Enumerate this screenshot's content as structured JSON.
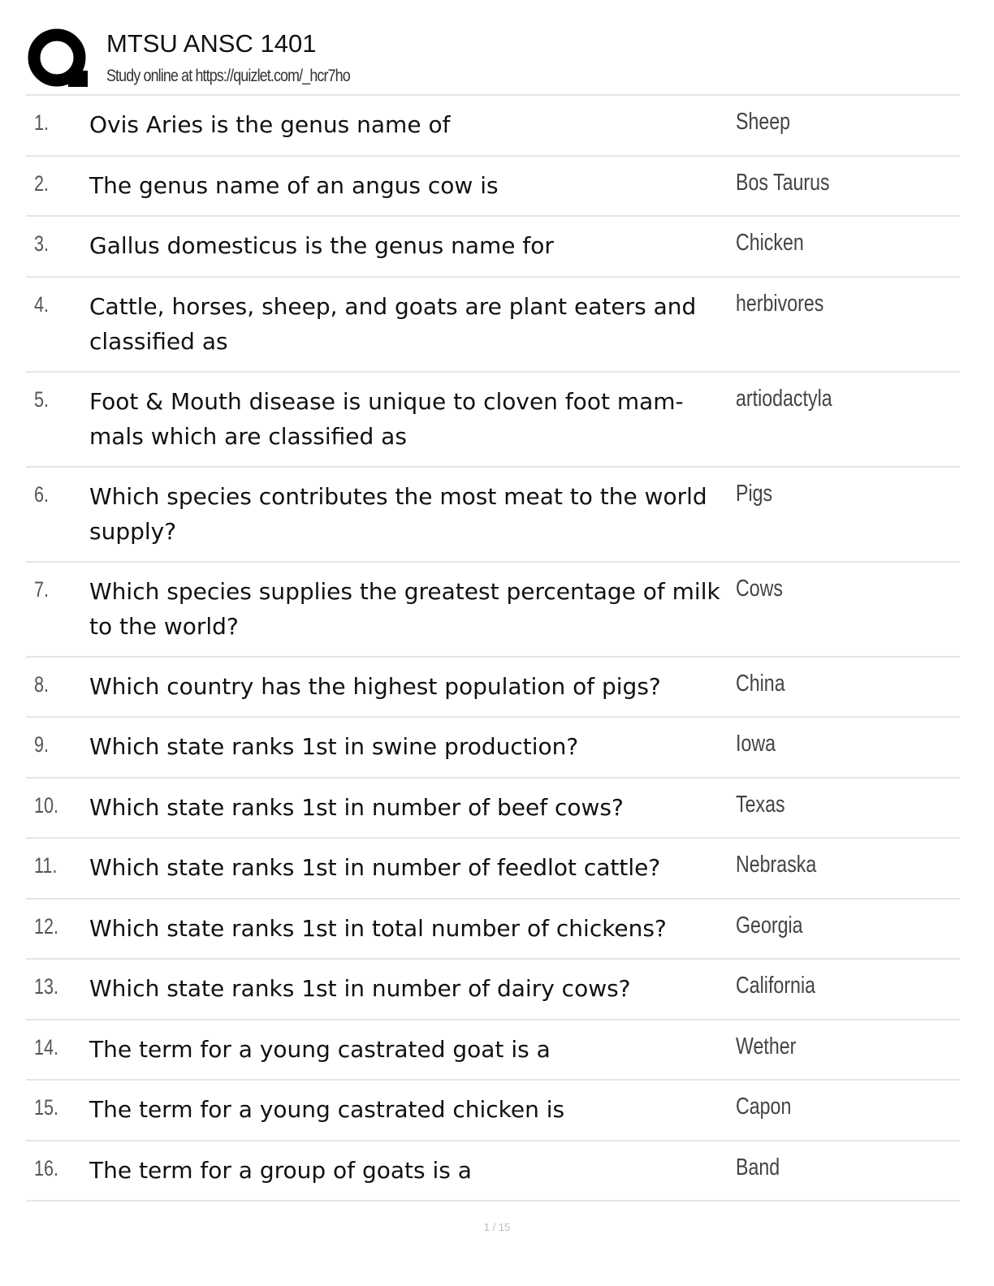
{
  "header": {
    "title": "MTSU ANSC 1401",
    "subtitle": "Study online at https://quizlet.com/_hcr7ho",
    "logo_icon": "quizlet-q-logo"
  },
  "cards": [
    {
      "num": "1.",
      "question": "Ovis Aries is the genus name of",
      "answer": "Sheep"
    },
    {
      "num": "2.",
      "question": "The genus name of an angus cow is",
      "answer": "Bos Taurus"
    },
    {
      "num": "3.",
      "question": "Gallus domesticus is the genus name for",
      "answer": "Chicken"
    },
    {
      "num": "4.",
      "question": "Cattle, horses, sheep, and goats are plant eaters and classified as",
      "answer": "herbivores"
    },
    {
      "num": "5.",
      "question": "Foot & Mouth disease is unique to cloven foot mam-mals which are classified as",
      "answer": "artiodactyla"
    },
    {
      "num": "6.",
      "question": "Which species contributes the most meat to the world supply?",
      "answer": "Pigs"
    },
    {
      "num": "7.",
      "question": "Which species supplies the greatest percentage of milk to the world?",
      "answer": "Cows"
    },
    {
      "num": "8.",
      "question": "Which country has the highest population of pigs?",
      "answer": "China"
    },
    {
      "num": "9.",
      "question": "Which state ranks 1st in swine production?",
      "answer": "Iowa"
    },
    {
      "num": "10.",
      "question": "Which state ranks 1st in number of beef cows?",
      "answer": "Texas"
    },
    {
      "num": "11.",
      "question": "Which state ranks 1st in number of feedlot cattle?",
      "answer": "Nebraska"
    },
    {
      "num": "12.",
      "question": "Which state ranks 1st in total number of chickens?",
      "answer": "Georgia"
    },
    {
      "num": "13.",
      "question": "Which state ranks 1st in number of dairy cows?",
      "answer": "California"
    },
    {
      "num": "14.",
      "question": "The term for a young castrated goat is a",
      "answer": "Wether"
    },
    {
      "num": "15.",
      "question": "The term for a young castrated chicken is",
      "answer": "Capon"
    },
    {
      "num": "16.",
      "question": "The term for a group of goats is a",
      "answer": "Band"
    }
  ],
  "footer": {
    "page": "1 / 15"
  }
}
